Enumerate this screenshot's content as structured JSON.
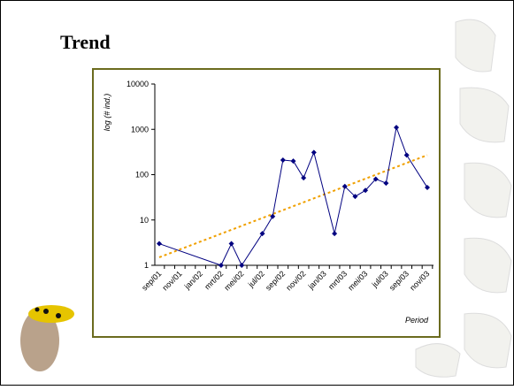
{
  "title": "Trend",
  "chart_data": {
    "type": "line",
    "categories": [
      "sep/01",
      null,
      "nov/01",
      null,
      "jan/02",
      null,
      "mrt/02",
      null,
      "mei/02",
      null,
      "jul/02",
      null,
      "sep/02",
      null,
      "nov/02",
      null,
      "jan/03",
      null,
      "mrt/03",
      null,
      "mei/03",
      null,
      "jul/03",
      null,
      "sep/03",
      null,
      "nov/03"
    ],
    "series": [
      {
        "color": "#000080",
        "values": [
          3,
          null,
          null,
          null,
          null,
          null,
          1,
          3,
          1,
          null,
          5,
          12,
          210,
          200,
          85,
          310,
          null,
          5,
          55,
          33,
          45,
          80,
          65,
          1100,
          270,
          null,
          52
        ]
      }
    ],
    "trendline": {
      "color": "#f0a000",
      "start": 1.5,
      "end": 270
    },
    "y_label": "log (# ind.)",
    "x_label": "Period",
    "log_scale": true,
    "ylim": [
      1,
      10000
    ],
    "yticks": [
      1,
      10,
      100,
      1000,
      10000
    ]
  }
}
